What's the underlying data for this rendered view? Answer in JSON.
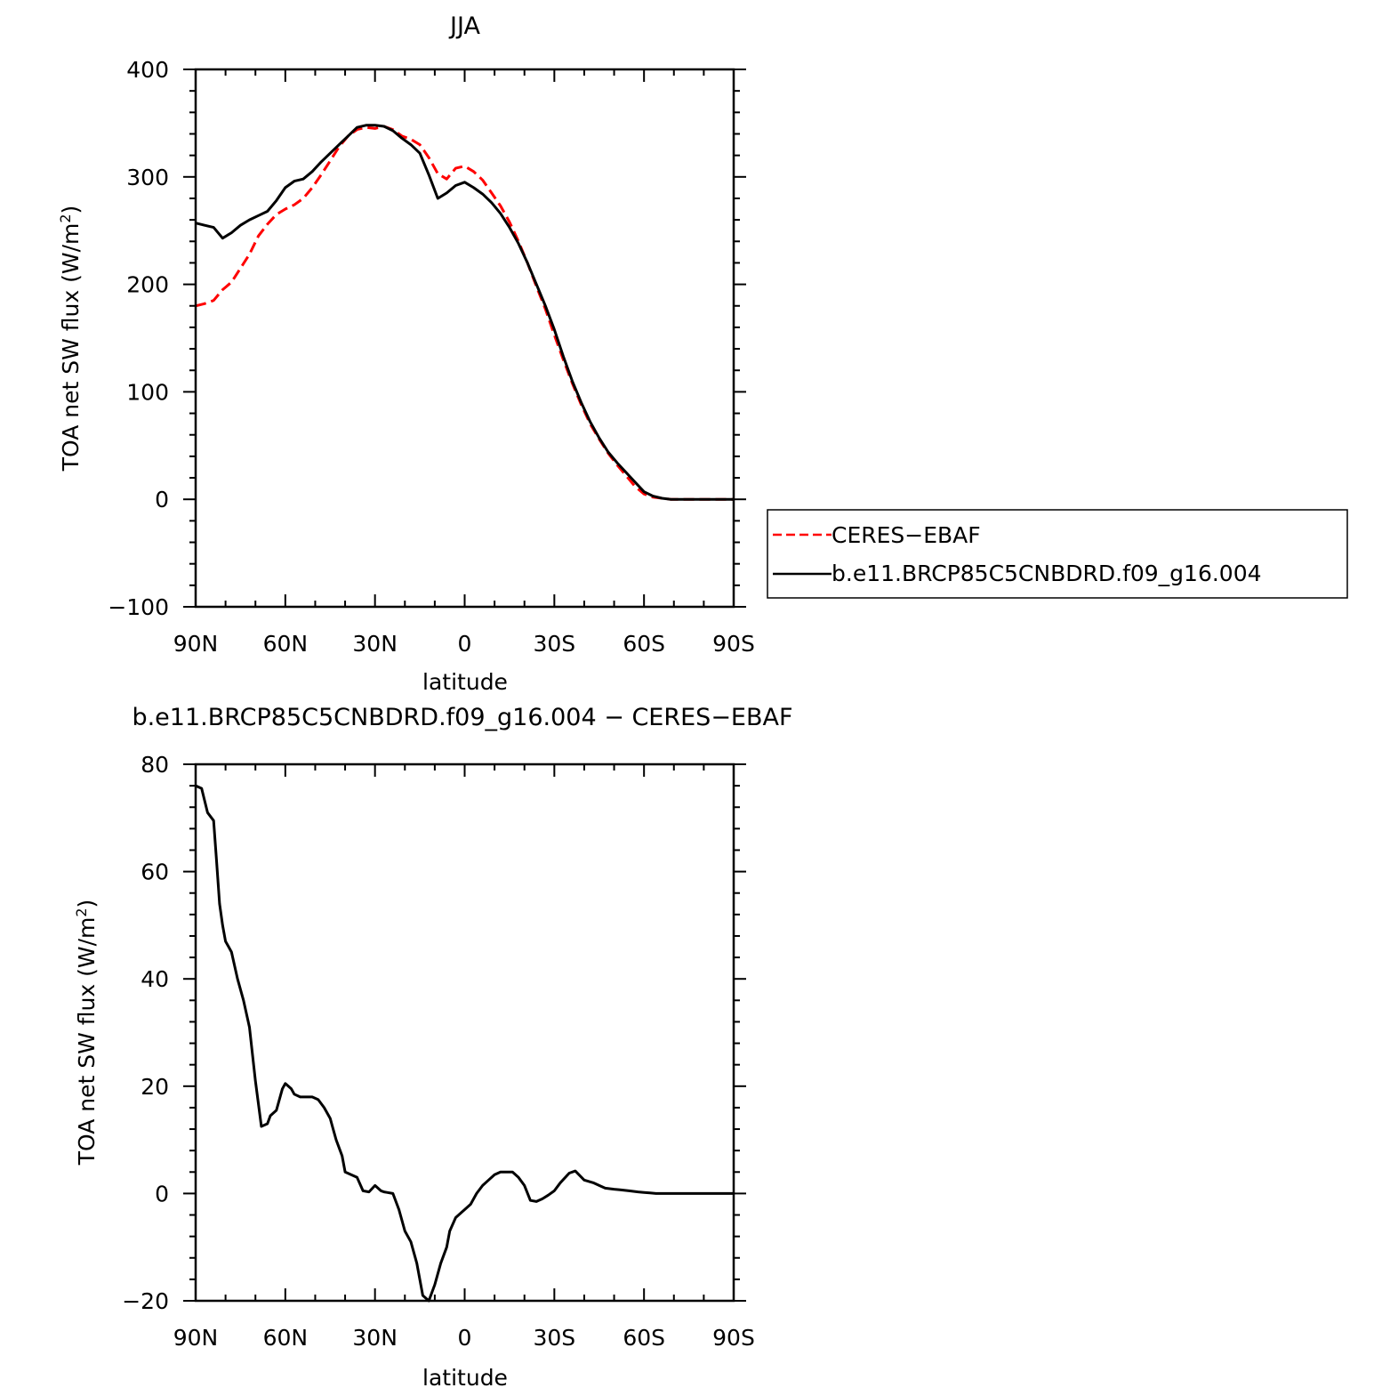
{
  "chart_data": [
    {
      "type": "line",
      "title": "JJA",
      "xlabel": "latitude",
      "ylabel": "TOA net SW flux (W/m²)",
      "ylabel_main": "TOA net SW flux (W/m",
      "ylabel_sup": "2",
      "ylabel_tail": ")",
      "xlim": [
        90,
        -90
      ],
      "ylim": [
        -100,
        400
      ],
      "x_ticks": [
        90,
        60,
        30,
        0,
        -30,
        -60,
        -90
      ],
      "x_tick_labels": [
        "90N",
        "60N",
        "30N",
        "0",
        "30S",
        "60S",
        "90S"
      ],
      "y_ticks": [
        -100,
        0,
        100,
        200,
        300,
        400
      ],
      "y_tick_labels": [
        "−100",
        "0",
        "100",
        "200",
        "300",
        "400"
      ],
      "grid": false,
      "legend_position": "right",
      "series": [
        {
          "name": "CERES−EBAF",
          "color": "#ff0000",
          "dash": "dashed",
          "x": [
            90,
            87,
            84,
            81,
            78,
            75,
            72,
            69,
            66,
            63,
            60,
            57,
            54,
            51,
            48,
            45,
            42,
            39,
            36,
            33,
            30,
            27,
            24,
            21,
            18,
            15,
            12,
            9,
            6,
            3,
            0,
            -3,
            -6,
            -9,
            -12,
            -15,
            -18,
            -21,
            -24,
            -27,
            -30,
            -33,
            -36,
            -39,
            -42,
            -45,
            -48,
            -51,
            -54,
            -57,
            -60,
            -63,
            -66,
            -69,
            -72,
            -75,
            -78,
            -81,
            -84,
            -87,
            -90
          ],
          "y": [
            180,
            182,
            185,
            195,
            202,
            215,
            228,
            245,
            256,
            265,
            270,
            274,
            280,
            290,
            302,
            315,
            328,
            338,
            344,
            346,
            345,
            347,
            344,
            338,
            335,
            330,
            318,
            303,
            298,
            308,
            310,
            305,
            297,
            285,
            273,
            258,
            240,
            220,
            198,
            177,
            153,
            130,
            108,
            88,
            70,
            56,
            43,
            32,
            22,
            12,
            5,
            2,
            1,
            0,
            0,
            0,
            0,
            0,
            0,
            0,
            0
          ]
        },
        {
          "name": "b.e11.BRCP85C5CNBDRD.f09_g16.004",
          "color": "#000000",
          "dash": "solid",
          "x": [
            90,
            87,
            84,
            81,
            78,
            75,
            72,
            69,
            66,
            63,
            60,
            57,
            54,
            51,
            48,
            45,
            42,
            39,
            36,
            33,
            30,
            27,
            24,
            21,
            18,
            15,
            12,
            9,
            6,
            3,
            0,
            -3,
            -6,
            -9,
            -12,
            -15,
            -18,
            -21,
            -24,
            -27,
            -30,
            -33,
            -36,
            -39,
            -42,
            -45,
            -48,
            -51,
            -54,
            -57,
            -60,
            -63,
            -66,
            -69,
            -72,
            -75,
            -78,
            -81,
            -84,
            -87,
            -90
          ],
          "y": [
            257,
            255,
            253,
            243,
            248,
            255,
            260,
            264,
            268,
            278,
            290,
            296,
            298,
            305,
            314,
            322,
            330,
            338,
            346,
            348,
            348,
            347,
            343,
            336,
            330,
            322,
            302,
            280,
            285,
            292,
            295,
            290,
            284,
            276,
            266,
            253,
            238,
            220,
            200,
            180,
            158,
            133,
            110,
            90,
            72,
            57,
            44,
            34,
            25,
            16,
            7,
            3,
            1,
            0,
            0,
            0,
            0,
            0,
            0,
            0,
            0
          ]
        }
      ]
    },
    {
      "type": "line",
      "title": "b.e11.BRCP85C5CNBDRD.f09_g16.004 − CERES−EBAF",
      "xlabel": "latitude",
      "ylabel": "TOA net SW flux (W/m²)",
      "ylabel_main": "TOA net SW flux (W/m",
      "ylabel_sup": "2",
      "ylabel_tail": ")",
      "xlim": [
        90,
        -90
      ],
      "ylim": [
        -20,
        80
      ],
      "x_ticks": [
        90,
        60,
        30,
        0,
        -30,
        -60,
        -90
      ],
      "x_tick_labels": [
        "90N",
        "60N",
        "30N",
        "0",
        "30S",
        "60S",
        "90S"
      ],
      "y_ticks": [
        -20,
        0,
        20,
        40,
        60,
        80
      ],
      "y_tick_labels": [
        "−20",
        "0",
        "20",
        "40",
        "60",
        "80"
      ],
      "grid": false,
      "series": [
        {
          "color": "#000000",
          "dash": "solid",
          "x": [
            90,
            88,
            86,
            84,
            83,
            82,
            81,
            80,
            79,
            78,
            76,
            74,
            72,
            70,
            68,
            66,
            65,
            63,
            61,
            60,
            58,
            57,
            55,
            53,
            51,
            49,
            47,
            45,
            44,
            43,
            41,
            40,
            38,
            36,
            34,
            32,
            30,
            28,
            27,
            26,
            24,
            22,
            20,
            18,
            16,
            14,
            12,
            10,
            8,
            6,
            5,
            3,
            1,
            0,
            -2,
            -4,
            -6,
            -8,
            -10,
            -12,
            -14,
            -16,
            -18,
            -20,
            -22,
            -24,
            -26,
            -28,
            -30,
            -32,
            -35,
            -37,
            -40,
            -43,
            -45,
            -47,
            -50,
            -52,
            -55,
            -58,
            -60,
            -62,
            -64,
            -66,
            -68,
            -70,
            -75,
            -80,
            -85,
            -90
          ],
          "y": [
            76,
            75.5,
            71,
            69.5,
            62,
            54,
            50,
            47,
            46,
            45,
            40,
            36,
            31,
            21,
            12.5,
            13,
            14.5,
            15.5,
            19.5,
            20.5,
            19.5,
            18.5,
            18,
            18,
            18,
            17.5,
            16,
            14,
            12,
            10,
            7,
            4,
            3.5,
            3,
            0.5,
            0.3,
            1.5,
            0.5,
            0.3,
            0.2,
            0,
            -3,
            -7,
            -9,
            -13,
            -19,
            -20,
            -17,
            -13,
            -10,
            -7,
            -4.5,
            -3.5,
            -3,
            -2,
            0,
            1.5,
            2.5,
            3.5,
            4,
            4,
            4,
            3,
            1.5,
            -1.3,
            -1.5,
            -1,
            -0.3,
            0.5,
            2,
            3.8,
            4.2,
            2.5,
            2,
            1.5,
            1,
            0.8,
            0.7,
            0.5,
            0.3,
            0.2,
            0.1,
            0,
            0,
            0,
            0,
            0,
            0,
            0,
            0
          ]
        }
      ]
    }
  ]
}
